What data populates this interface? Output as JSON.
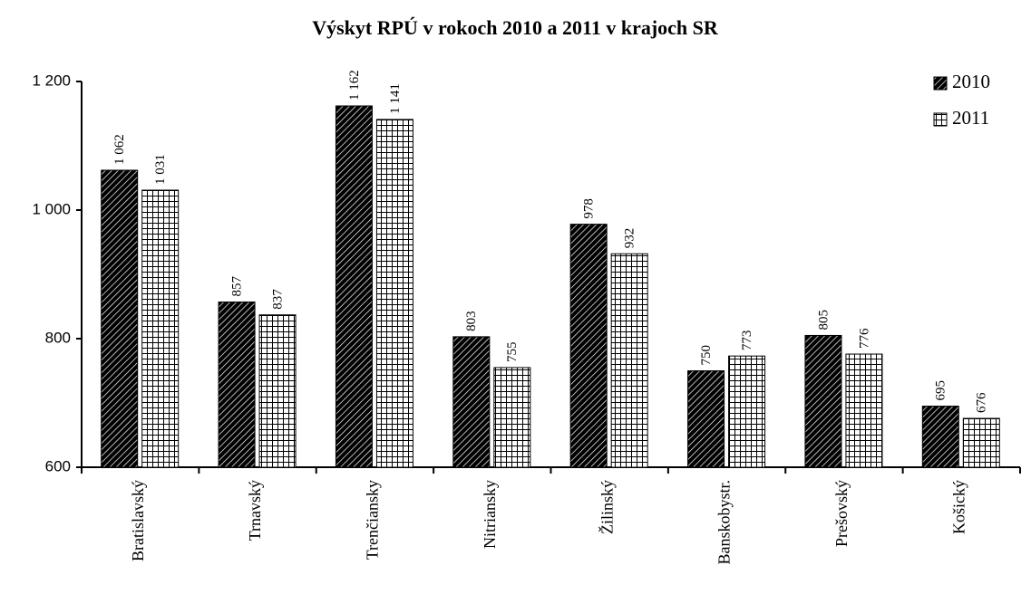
{
  "chart_data": {
    "type": "bar",
    "title": "Výskyt RPÚ v rokoch 2010 a 2011 v krajoch SR",
    "categories": [
      "Bratislavský",
      "Trnavský",
      "Trenčiansky",
      "Nitriansky",
      "Žilinský",
      "Banskobystr.",
      "Prešovský",
      "Košický"
    ],
    "series": [
      {
        "name": "2010",
        "color": "#000000",
        "values": [
          1062,
          857,
          1162,
          803,
          978,
          750,
          805,
          695
        ],
        "value_labels": [
          "1 062",
          "857",
          "1 162",
          "803",
          "978",
          "750",
          "805",
          "695"
        ]
      },
      {
        "name": "2011",
        "color": "#000000",
        "values": [
          1031,
          837,
          1141,
          755,
          932,
          773,
          776,
          676
        ],
        "value_labels": [
          "1 031",
          "837",
          "1 141",
          "755",
          "932",
          "773",
          "776",
          "676"
        ]
      }
    ],
    "ylim": [
      600,
      1200
    ],
    "yticks": [
      600,
      800,
      {
        "value": 1000,
        "label": "1 000"
      },
      {
        "value": 1200,
        "label": "1 200"
      }
    ],
    "legend": "upper right",
    "grid": false
  }
}
